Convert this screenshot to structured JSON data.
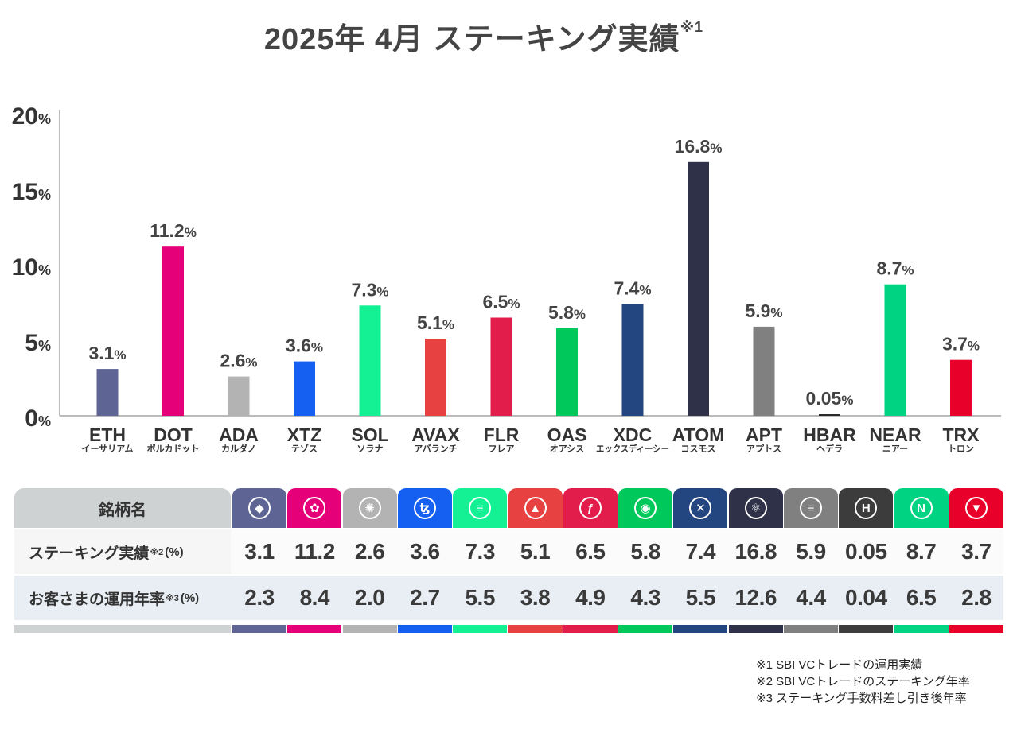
{
  "title": "2025年 4月  ステーキング実績",
  "title_note_mark": "※1",
  "chart_data": {
    "type": "bar",
    "title": "2025年 4月  ステーキング実績",
    "ylim": [
      0,
      20
    ],
    "yticks": [
      {
        "value": 0,
        "num": "0",
        "unit": "%"
      },
      {
        "value": 5,
        "num": "5",
        "unit": "%"
      },
      {
        "value": 10,
        "num": "10",
        "unit": "%"
      },
      {
        "value": 15,
        "num": "15",
        "unit": "%"
      },
      {
        "value": 20,
        "num": "20",
        "unit": "%"
      }
    ],
    "grid": false,
    "categories": [
      "ETH",
      "DOT",
      "ADA",
      "XTZ",
      "SOL",
      "AVAX",
      "FLR",
      "OAS",
      "XDC",
      "ATOM",
      "APT",
      "HBAR",
      "NEAR",
      "TRX"
    ],
    "category_kana": [
      "イーサリアム",
      "ポルカドット",
      "カルダノ",
      "テゾス",
      "ソラナ",
      "アバランチ",
      "フレア",
      "オアシス",
      "エックスディーシー",
      "コスモス",
      "アプトス",
      "ヘデラ",
      "ニアー",
      "トロン"
    ],
    "values": [
      3.1,
      11.2,
      2.6,
      3.6,
      7.3,
      5.1,
      6.5,
      5.8,
      7.4,
      16.8,
      5.9,
      0.05,
      8.7,
      3.7
    ],
    "value_labels": [
      "3.1",
      "11.2",
      "2.6",
      "3.6",
      "7.3",
      "5.1",
      "6.5",
      "5.8",
      "7.4",
      "16.8",
      "5.9",
      "0.05",
      "8.7",
      "3.7"
    ],
    "value_unit": "%",
    "colors": [
      "#5e6594",
      "#e5007a",
      "#b3b3b3",
      "#1560f0",
      "#14f195",
      "#e84142",
      "#e21d4b",
      "#00c85a",
      "#234580",
      "#2e3148",
      "#808080",
      "#2b2b2b",
      "#00d381",
      "#e8002a"
    ]
  },
  "table": {
    "header_label": "銘柄名",
    "row1": {
      "label": "ステーキング実績",
      "note": "※2",
      "unit": "(%)",
      "values": [
        "3.1",
        "11.2",
        "2.6",
        "3.6",
        "7.3",
        "5.1",
        "6.5",
        "5.8",
        "7.4",
        "16.8",
        "5.9",
        "0.05",
        "8.7",
        "3.7"
      ]
    },
    "row2": {
      "label": "お客さまの運用年率",
      "note": "※3",
      "unit": "(%)",
      "values": [
        "2.3",
        "8.4",
        "2.0",
        "2.7",
        "5.5",
        "3.8",
        "4.9",
        "4.3",
        "5.5",
        "12.6",
        "4.4",
        "0.04",
        "6.5",
        "2.8"
      ]
    },
    "header_colors": [
      "#5e6594",
      "#e5007a",
      "#b3b3b3",
      "#1560f0",
      "#14f195",
      "#e84142",
      "#e21d4b",
      "#00c85a",
      "#234580",
      "#2e3148",
      "#808080",
      "#3c3c3c",
      "#00d381",
      "#e8002a"
    ],
    "icons": [
      "eth-icon",
      "dot-icon",
      "ada-icon",
      "xtz-icon",
      "sol-icon",
      "avax-icon",
      "flr-icon",
      "oas-icon",
      "xdc-icon",
      "atom-icon",
      "apt-icon",
      "hbar-icon",
      "near-icon",
      "trx-icon"
    ],
    "icon_glyphs": [
      "◆",
      "✿",
      "✺",
      "ꜩ",
      "≡",
      "▲",
      "ƒ",
      "◉",
      "✕",
      "⚛",
      "≡",
      "H",
      "N",
      "▼"
    ]
  },
  "notes": [
    "※1  SBI VCトレードの運用実績",
    "※2  SBI VCトレードのステーキング年率",
    "※3  ステーキング手数料差し引き後年率"
  ]
}
